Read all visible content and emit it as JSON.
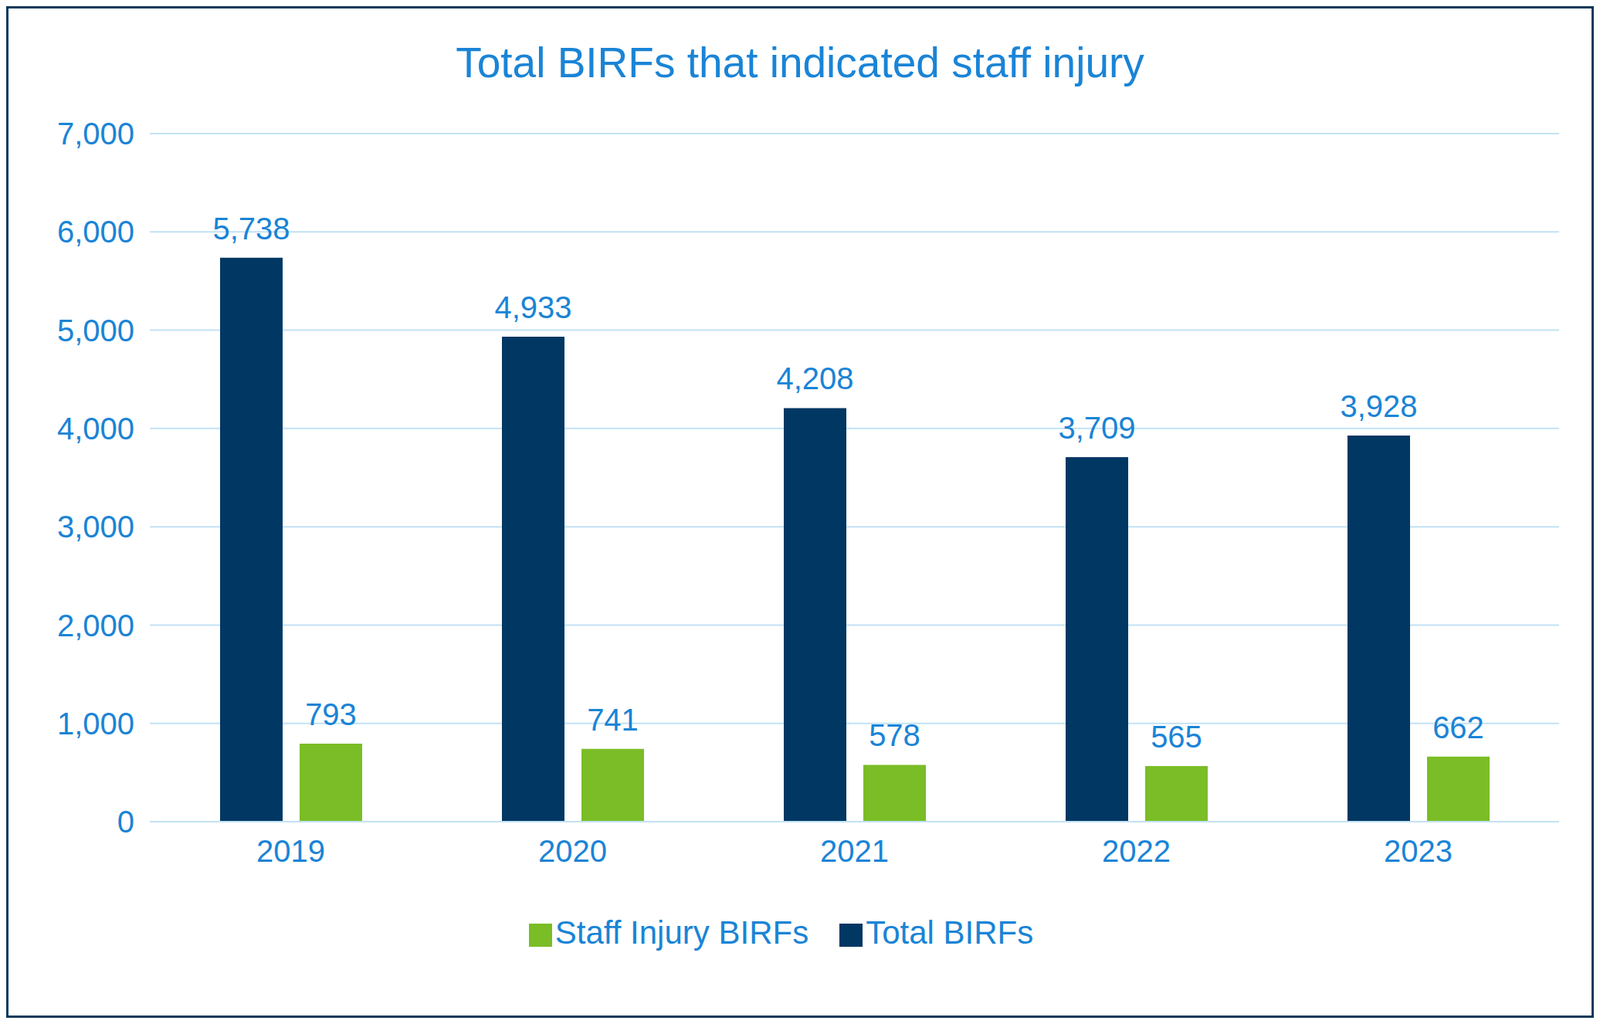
{
  "chart_data": {
    "type": "bar",
    "title": "Total BIRFs that indicated staff injury",
    "categories": [
      "2019",
      "2020",
      "2021",
      "2022",
      "2023"
    ],
    "series": [
      {
        "name": "Total BIRFs",
        "color": "#003763",
        "values": [
          5738,
          4933,
          4208,
          3709,
          3928
        ],
        "value_labels": [
          "5,738",
          "4,933",
          "4,208",
          "3,709",
          "3,928"
        ]
      },
      {
        "name": "Staff Injury BIRFs",
        "color": "#7abd26",
        "values": [
          793,
          741,
          578,
          565,
          662
        ]
      }
    ],
    "ylim": [
      0,
      7000
    ],
    "yticks": [
      0,
      {
        "value": 1000,
        "label": "1,000"
      },
      {
        "value": 2000,
        "label": "2,000"
      },
      {
        "value": 3000,
        "label": "3,000"
      },
      {
        "value": 4000,
        "label": "4,000"
      },
      {
        "value": 5000,
        "label": "5,000"
      },
      {
        "value": 6000,
        "label": "6,000"
      },
      {
        "value": 7000,
        "label": "7,000"
      }
    ],
    "grid": true,
    "legend": "bottom",
    "data_labels": true
  }
}
